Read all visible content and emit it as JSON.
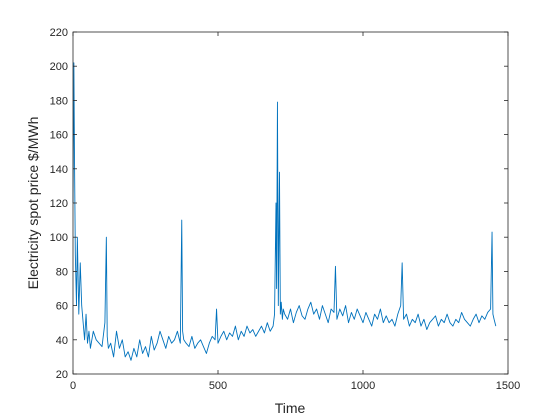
{
  "chart_data": {
    "type": "line",
    "xlabel": "Time",
    "ylabel": "Electricity spot price $/MWh",
    "xlim": [
      0,
      1500
    ],
    "ylim": [
      20,
      220
    ],
    "xticks": [
      0,
      500,
      1000,
      1500
    ],
    "yticks": [
      20,
      40,
      60,
      80,
      100,
      120,
      140,
      160,
      180,
      200,
      220
    ],
    "grid": false,
    "line_color": "#0072BD",
    "series": [
      {
        "x": [
          0,
          3,
          5,
          8,
          12,
          15,
          20,
          25,
          30,
          35,
          40,
          45,
          50,
          55,
          60,
          70,
          80,
          90,
          100,
          110,
          115,
          118,
          122,
          130,
          140,
          150,
          160,
          170,
          180,
          190,
          200,
          210,
          220,
          230,
          240,
          250,
          260,
          270,
          280,
          290,
          300,
          310,
          320,
          330,
          340,
          350,
          360,
          370,
          375,
          378,
          382,
          390,
          400,
          410,
          420,
          430,
          440,
          450,
          460,
          470,
          480,
          490,
          495,
          500,
          510,
          520,
          530,
          540,
          550,
          560,
          570,
          580,
          590,
          600,
          610,
          620,
          630,
          640,
          650,
          660,
          670,
          680,
          690,
          695,
          700,
          702,
          705,
          708,
          712,
          715,
          718,
          722,
          725,
          730,
          740,
          750,
          760,
          770,
          780,
          790,
          800,
          810,
          820,
          830,
          840,
          850,
          860,
          870,
          880,
          890,
          900,
          905,
          910,
          920,
          930,
          940,
          950,
          960,
          970,
          980,
          990,
          1000,
          1010,
          1020,
          1030,
          1040,
          1050,
          1060,
          1070,
          1080,
          1090,
          1100,
          1110,
          1120,
          1130,
          1135,
          1140,
          1150,
          1160,
          1170,
          1180,
          1190,
          1200,
          1210,
          1220,
          1230,
          1240,
          1250,
          1260,
          1270,
          1280,
          1290,
          1300,
          1310,
          1320,
          1330,
          1340,
          1350,
          1360,
          1370,
          1380,
          1390,
          1400,
          1410,
          1420,
          1430,
          1440,
          1445,
          1448,
          1452,
          1458
        ],
        "y": [
          120,
          202,
          150,
          90,
          60,
          100,
          55,
          85,
          60,
          50,
          40,
          55,
          38,
          45,
          35,
          45,
          40,
          38,
          36,
          50,
          100,
          42,
          35,
          38,
          30,
          45,
          35,
          40,
          30,
          33,
          28,
          35,
          30,
          40,
          32,
          36,
          30,
          42,
          34,
          38,
          45,
          40,
          35,
          42,
          38,
          40,
          45,
          38,
          110,
          45,
          40,
          38,
          36,
          42,
          35,
          38,
          40,
          36,
          32,
          38,
          42,
          40,
          58,
          38,
          42,
          45,
          40,
          44,
          42,
          48,
          40,
          45,
          42,
          48,
          44,
          46,
          42,
          45,
          48,
          44,
          50,
          45,
          48,
          55,
          120,
          70,
          179,
          60,
          138,
          55,
          62,
          52,
          58,
          55,
          52,
          58,
          50,
          56,
          60,
          54,
          52,
          58,
          62,
          55,
          58,
          52,
          60,
          55,
          50,
          58,
          56,
          83,
          52,
          58,
          54,
          60,
          50,
          56,
          52,
          58,
          54,
          50,
          56,
          52,
          48,
          55,
          52,
          58,
          50,
          54,
          50,
          52,
          48,
          55,
          60,
          85,
          52,
          55,
          48,
          52,
          50,
          55,
          48,
          52,
          46,
          50,
          52,
          54,
          48,
          52,
          50,
          55,
          50,
          48,
          52,
          50,
          56,
          52,
          50,
          48,
          52,
          55,
          50,
          54,
          52,
          56,
          58,
          103,
          55,
          52,
          48
        ]
      }
    ]
  }
}
